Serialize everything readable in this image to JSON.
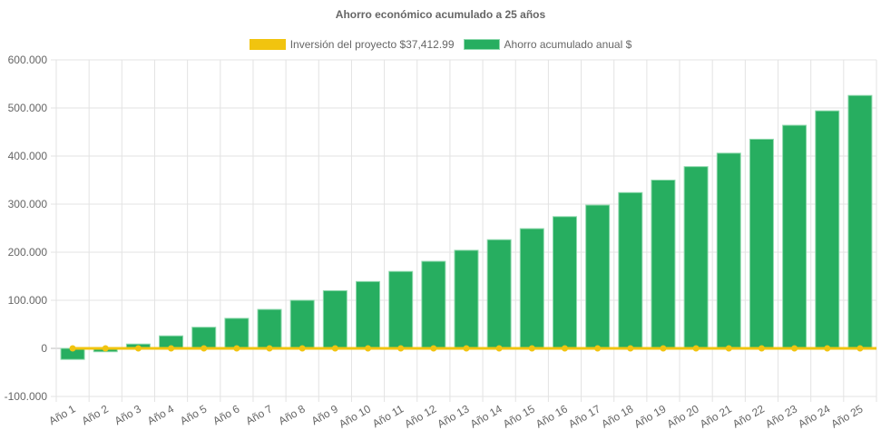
{
  "chart_data": {
    "type": "bar",
    "title": "Ahorro económico acumulado a 25 años",
    "categories": [
      "Año 1",
      "Año 2",
      "Año 3",
      "Año 4",
      "Año 5",
      "Año 6",
      "Año 7",
      "Año 8",
      "Año 9",
      "Año 10",
      "Año 11",
      "Año 12",
      "Año 13",
      "Año 14",
      "Año 15",
      "Año 16",
      "Año 17",
      "Año 18",
      "Año 19",
      "Año 20",
      "Año 21",
      "Año 22",
      "Año 23",
      "Año 24",
      "Año 25"
    ],
    "series": [
      {
        "name": "Inversión del proyecto $37,412.99",
        "type": "line",
        "color": "#f1c40f",
        "values": [
          0,
          0,
          0,
          0,
          0,
          0,
          0,
          0,
          0,
          0,
          0,
          0,
          0,
          0,
          0,
          0,
          0,
          0,
          0,
          0,
          0,
          0,
          0,
          0,
          0
        ]
      },
      {
        "name": "Ahorro acumulado anual $",
        "type": "bar",
        "color": "#27ae60",
        "values": [
          -23000,
          -7000,
          9000,
          26000,
          44000,
          62500,
          81000,
          100000,
          120000,
          139000,
          160000,
          181000,
          204000,
          226000,
          249000,
          274000,
          298000,
          324000,
          350000,
          378000,
          406000,
          435000,
          464000,
          494000,
          526000
        ]
      }
    ],
    "yticks": [
      "600.000",
      "500.000",
      "400.000",
      "300.000",
      "200.000",
      "100.000",
      "0",
      "-100.000"
    ],
    "ylim": [
      -100000,
      600000
    ],
    "grid": true,
    "legend": "top"
  }
}
